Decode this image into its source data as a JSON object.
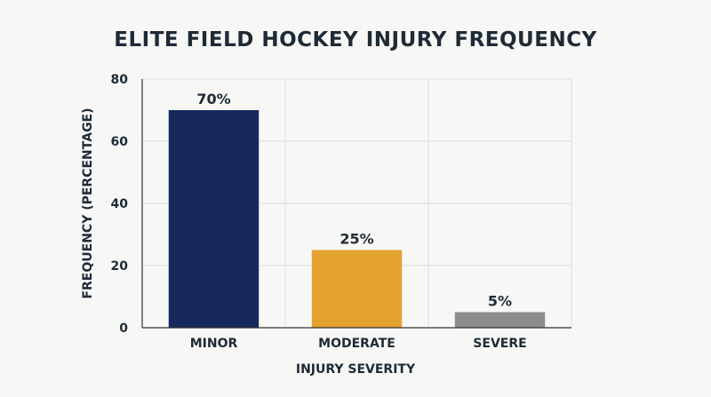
{
  "chart_data": {
    "type": "bar",
    "title": "ELITE FIELD HOCKEY INJURY FREQUENCY",
    "xlabel": "INJURY SEVERITY",
    "ylabel": "FREQUENCY (PERCENTAGE)",
    "categories": [
      "MINOR",
      "MODERATE",
      "SEVERE"
    ],
    "values": [
      70,
      25,
      5
    ],
    "data_labels": [
      "70%",
      "25%",
      "5%"
    ],
    "colors": [
      "#17295a",
      "#e3a12f",
      "#8c8c8c"
    ],
    "ylim": [
      0,
      80
    ],
    "yticks": [
      0,
      20,
      40,
      60,
      80
    ],
    "grid": true,
    "legend": "none"
  }
}
